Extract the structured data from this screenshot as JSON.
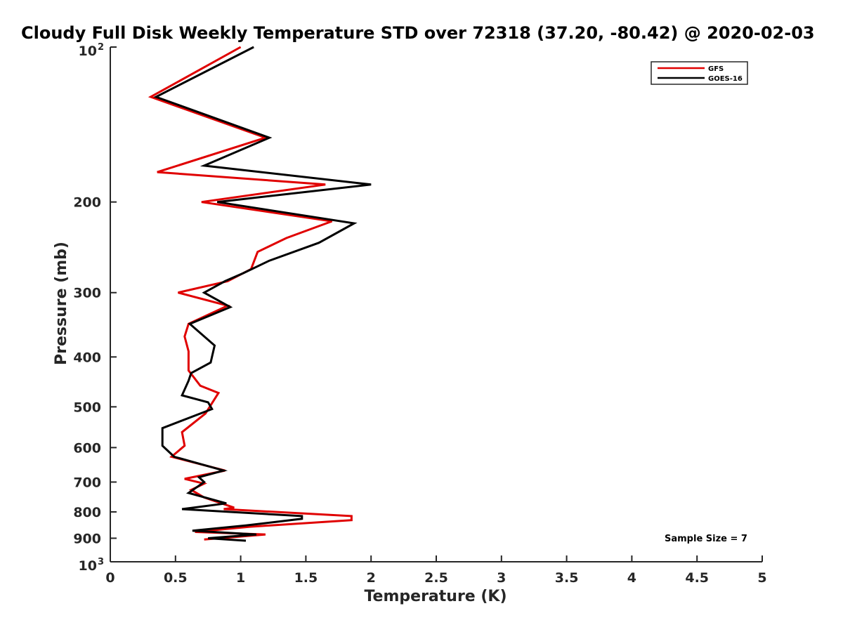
{
  "chart_data": {
    "type": "line",
    "title": "Cloudy Full Disk Weekly Temperature STD over 72318 (37.20, -80.42) @ 2020-02-03",
    "xlabel": "Temperature (K)",
    "ylabel": "Pressure (mb)",
    "xlim": [
      0,
      5
    ],
    "ylim": [
      1000,
      100
    ],
    "yscale": "log",
    "x_ticks": [
      0,
      0.5,
      1,
      1.5,
      2,
      2.5,
      3,
      3.5,
      4,
      4.5,
      5
    ],
    "x_tick_labels": [
      "0",
      "0.5",
      "1",
      "1.5",
      "2",
      "2.5",
      "3",
      "3.5",
      "4",
      "4.5",
      "5"
    ],
    "y_ticks": [
      {
        "value": 100,
        "label": "10",
        "exp": "2"
      },
      {
        "value": 200,
        "label": "200",
        "exp": ""
      },
      {
        "value": 300,
        "label": "300",
        "exp": ""
      },
      {
        "value": 400,
        "label": "400",
        "exp": ""
      },
      {
        "value": 500,
        "label": "500",
        "exp": ""
      },
      {
        "value": 600,
        "label": "600",
        "exp": ""
      },
      {
        "value": 700,
        "label": "700",
        "exp": ""
      },
      {
        "value": 800,
        "label": "800",
        "exp": ""
      },
      {
        "value": 900,
        "label": "900",
        "exp": ""
      },
      {
        "value": 1000,
        "label": "10",
        "exp": "3"
      }
    ],
    "legend_position": "top-right",
    "annotation": "Sample Size = 7",
    "series": [
      {
        "name": "GFS",
        "color": "#e00000",
        "points": [
          [
            1.0,
            100
          ],
          [
            0.31,
            125
          ],
          [
            1.19,
            150
          ],
          [
            0.36,
            175
          ],
          [
            1.65,
            185
          ],
          [
            0.7,
            200
          ],
          [
            1.7,
            218
          ],
          [
            1.35,
            235
          ],
          [
            1.13,
            250
          ],
          [
            1.08,
            270
          ],
          [
            0.9,
            285
          ],
          [
            0.52,
            300
          ],
          [
            0.9,
            318
          ],
          [
            0.6,
            345
          ],
          [
            0.57,
            365
          ],
          [
            0.6,
            390
          ],
          [
            0.6,
            425
          ],
          [
            0.69,
            455
          ],
          [
            0.83,
            470
          ],
          [
            0.73,
            515
          ],
          [
            0.55,
            560
          ],
          [
            0.57,
            595
          ],
          [
            0.47,
            625
          ],
          [
            0.88,
            665
          ],
          [
            0.57,
            690
          ],
          [
            0.72,
            705
          ],
          [
            0.62,
            725
          ],
          [
            0.72,
            750
          ],
          [
            0.95,
            785
          ],
          [
            0.87,
            790
          ],
          [
            1.85,
            815
          ],
          [
            1.85,
            830
          ],
          [
            1.07,
            855
          ],
          [
            0.65,
            875
          ],
          [
            1.19,
            885
          ],
          [
            0.72,
            905
          ]
        ]
      },
      {
        "name": "GOES-16",
        "color": "#000000",
        "points": [
          [
            1.1,
            100
          ],
          [
            0.35,
            125
          ],
          [
            1.22,
            150
          ],
          [
            0.72,
            170
          ],
          [
            2.0,
            185
          ],
          [
            0.82,
            200
          ],
          [
            1.87,
            220
          ],
          [
            1.6,
            240
          ],
          [
            1.22,
            260
          ],
          [
            1.02,
            275
          ],
          [
            0.88,
            285
          ],
          [
            0.72,
            300
          ],
          [
            0.92,
            320
          ],
          [
            0.61,
            345
          ],
          [
            0.8,
            380
          ],
          [
            0.77,
            410
          ],
          [
            0.62,
            430
          ],
          [
            0.6,
            445
          ],
          [
            0.55,
            475
          ],
          [
            0.75,
            490
          ],
          [
            0.78,
            505
          ],
          [
            0.4,
            550
          ],
          [
            0.4,
            595
          ],
          [
            0.49,
            625
          ],
          [
            0.87,
            665
          ],
          [
            0.68,
            685
          ],
          [
            0.72,
            700
          ],
          [
            0.6,
            735
          ],
          [
            0.89,
            770
          ],
          [
            0.55,
            790
          ],
          [
            1.47,
            815
          ],
          [
            1.47,
            825
          ],
          [
            1.04,
            850
          ],
          [
            0.63,
            870
          ],
          [
            1.12,
            885
          ],
          [
            0.75,
            900
          ],
          [
            1.04,
            910
          ]
        ]
      }
    ]
  }
}
